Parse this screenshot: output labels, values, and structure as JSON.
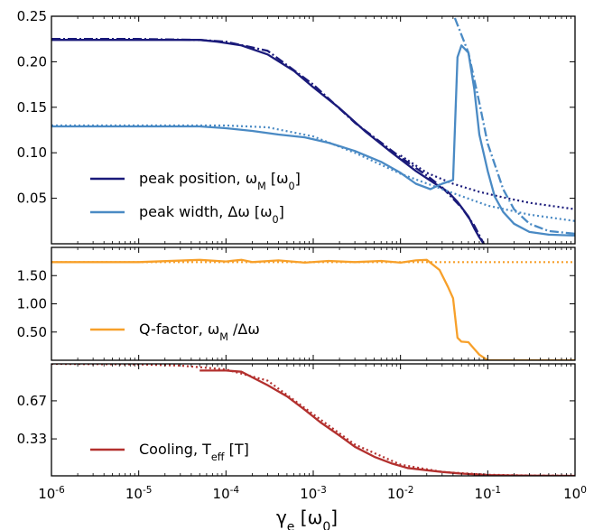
{
  "colors": {
    "dark_blue": "#1a1a7a",
    "light_blue": "#4a8ac4",
    "orange": "#f7a02a",
    "red": "#b3302e"
  },
  "x_axis": {
    "label": "γe [ω0]",
    "label_parts": [
      "γ",
      "e",
      "[ω",
      "0",
      "]"
    ],
    "ticks": [
      {
        "base": "10",
        "exp": "-6"
      },
      {
        "base": "10",
        "exp": "-5"
      },
      {
        "base": "10",
        "exp": "-4"
      },
      {
        "base": "10",
        "exp": "-3"
      },
      {
        "base": "10",
        "exp": "-2"
      },
      {
        "base": "10",
        "exp": "-1"
      },
      {
        "base": "10",
        "exp": "0"
      }
    ]
  },
  "chart_data": [
    {
      "type": "line",
      "x_scale": "log",
      "xlim": [
        1e-06,
        1
      ],
      "ylim": [
        0,
        0.25
      ],
      "yticks": [
        "0.25",
        "0.20",
        "0.15",
        "0.10",
        "0.05"
      ],
      "grid": false,
      "legend": {
        "placement": "lower-left",
        "entries": [
          {
            "text": "peak position, ωM [ω0]",
            "parts": [
              "peak position, ω",
              "M",
              " [ω",
              "0",
              "]"
            ],
            "color": "dark_blue"
          },
          {
            "text": "peak width, Δω [ω0]",
            "parts": [
              "peak width, Δω [ω",
              "0",
              "]"
            ],
            "color": "light_blue"
          }
        ]
      },
      "series": [
        {
          "name": "peak position, ωM [ω0]",
          "style": "solid",
          "color": "dark_blue",
          "points": [
            [
              1e-06,
              0.224
            ],
            [
              1e-05,
              0.224
            ],
            [
              3e-05,
              0.224
            ],
            [
              5e-05,
              0.224
            ],
            [
              8e-05,
              0.222
            ],
            [
              0.00015,
              0.218
            ],
            [
              0.0003,
              0.208
            ],
            [
              0.0006,
              0.19
            ],
            [
              0.001,
              0.172
            ],
            [
              0.002,
              0.149
            ],
            [
              0.004,
              0.123
            ],
            [
              0.008,
              0.1
            ],
            [
              0.015,
              0.08
            ],
            [
              0.025,
              0.066
            ],
            [
              0.035,
              0.057
            ],
            [
              0.045,
              0.046
            ],
            [
              0.06,
              0.03
            ],
            [
              0.07,
              0.017
            ],
            [
              0.08,
              0.007
            ],
            [
              0.09,
              0.0
            ]
          ]
        },
        {
          "name": "peak position, ωM [ω0] (dash-dot fit)",
          "style": "dashdot",
          "color": "dark_blue",
          "points": [
            [
              1e-06,
              0.225
            ],
            [
              1e-05,
              0.225
            ],
            [
              5e-05,
              0.224
            ],
            [
              0.0001,
              0.222
            ],
            [
              0.0003,
              0.212
            ],
            [
              0.001,
              0.175
            ],
            [
              0.003,
              0.133
            ],
            [
              0.01,
              0.095
            ],
            [
              0.02,
              0.075
            ],
            [
              0.03,
              0.062
            ],
            [
              0.05,
              0.04
            ],
            [
              0.07,
              0.02
            ],
            [
              0.09,
              0.0
            ]
          ]
        },
        {
          "name": "peak position, ωM [ω0] (dotted fit)",
          "style": "dotted",
          "color": "dark_blue",
          "points": [
            [
              0.01,
              0.097
            ],
            [
              0.02,
              0.078
            ],
            [
              0.04,
              0.066
            ],
            [
              0.08,
              0.057
            ],
            [
              0.15,
              0.051
            ],
            [
              0.3,
              0.045
            ],
            [
              0.6,
              0.041
            ],
            [
              1.0,
              0.038
            ]
          ]
        },
        {
          "name": "peak width, Δω [ω0]",
          "style": "solid",
          "color": "light_blue",
          "points": [
            [
              1e-06,
              0.129
            ],
            [
              1e-05,
              0.129
            ],
            [
              5e-05,
              0.129
            ],
            [
              0.0001,
              0.127
            ],
            [
              0.0002,
              0.124
            ],
            [
              0.0004,
              0.12
            ],
            [
              0.0008,
              0.117
            ],
            [
              0.0015,
              0.111
            ],
            [
              0.003,
              0.102
            ],
            [
              0.006,
              0.09
            ],
            [
              0.01,
              0.078
            ],
            [
              0.015,
              0.066
            ],
            [
              0.022,
              0.06
            ],
            [
              0.03,
              0.066
            ],
            [
              0.04,
              0.07
            ],
            [
              0.045,
              0.205
            ],
            [
              0.05,
              0.218
            ],
            [
              0.06,
              0.21
            ],
            [
              0.07,
              0.17
            ],
            [
              0.08,
              0.12
            ],
            [
              0.1,
              0.08
            ],
            [
              0.12,
              0.052
            ],
            [
              0.15,
              0.035
            ],
            [
              0.2,
              0.022
            ],
            [
              0.3,
              0.013
            ],
            [
              0.5,
              0.01
            ],
            [
              1.0,
              0.009
            ]
          ]
        },
        {
          "name": "peak width, Δω [ω0] (dash-dot fit)",
          "style": "dashdot",
          "color": "light_blue",
          "points": [
            [
              0.042,
              0.248
            ],
            [
              0.06,
              0.21
            ],
            [
              0.08,
              0.155
            ],
            [
              0.1,
              0.11
            ],
            [
              0.15,
              0.06
            ],
            [
              0.2,
              0.038
            ],
            [
              0.3,
              0.022
            ],
            [
              0.5,
              0.014
            ],
            [
              1.0,
              0.011
            ]
          ]
        },
        {
          "name": "peak width, Δω [ω0] (dotted fit)",
          "style": "dotted",
          "color": "light_blue",
          "points": [
            [
              1e-06,
              0.13
            ],
            [
              1e-05,
              0.13
            ],
            [
              0.0001,
              0.13
            ],
            [
              0.0003,
              0.128
            ],
            [
              0.001,
              0.118
            ],
            [
              0.003,
              0.1
            ],
            [
              0.01,
              0.077
            ],
            [
              0.03,
              0.06
            ],
            [
              0.1,
              0.042
            ],
            [
              0.3,
              0.032
            ],
            [
              1.0,
              0.025
            ]
          ]
        }
      ]
    },
    {
      "type": "line",
      "x_scale": "log",
      "xlim": [
        1e-06,
        1
      ],
      "ylim": [
        0,
        2.0
      ],
      "yticks": [
        "1.50",
        "1.00",
        "0.50"
      ],
      "grid": false,
      "legend": {
        "placement": "lower-left",
        "entries": [
          {
            "text": "Q-factor, ωM /Δω",
            "parts": [
              "Q-factor, ω",
              "M",
              " /Δω"
            ],
            "color": "orange"
          }
        ]
      },
      "series": [
        {
          "name": "Q-factor, ωM /Δω",
          "style": "solid",
          "color": "orange",
          "points": [
            [
              1e-06,
              1.74
            ],
            [
              1e-05,
              1.74
            ],
            [
              5e-05,
              1.78
            ],
            [
              0.0001,
              1.75
            ],
            [
              0.00015,
              1.78
            ],
            [
              0.0002,
              1.74
            ],
            [
              0.0004,
              1.77
            ],
            [
              0.0008,
              1.73
            ],
            [
              0.0015,
              1.76
            ],
            [
              0.003,
              1.74
            ],
            [
              0.006,
              1.76
            ],
            [
              0.01,
              1.73
            ],
            [
              0.015,
              1.77
            ],
            [
              0.02,
              1.78
            ],
            [
              0.028,
              1.6
            ],
            [
              0.035,
              1.3
            ],
            [
              0.04,
              1.1
            ],
            [
              0.045,
              0.4
            ],
            [
              0.05,
              0.33
            ],
            [
              0.06,
              0.32
            ],
            [
              0.07,
              0.2
            ],
            [
              0.08,
              0.1
            ],
            [
              0.1,
              0.0
            ],
            [
              0.3,
              0.0
            ],
            [
              1.0,
              0.0
            ]
          ]
        },
        {
          "name": "Q-factor, ωM /Δω (dotted fit)",
          "style": "dotted",
          "color": "orange",
          "points": [
            [
              1e-06,
              1.74
            ],
            [
              1.0,
              1.74
            ]
          ]
        }
      ]
    },
    {
      "type": "line",
      "x_scale": "log",
      "xlim": [
        1e-06,
        1
      ],
      "ylim": [
        0,
        1.0
      ],
      "yticks": [
        "0.67",
        "0.33"
      ],
      "grid": false,
      "legend": {
        "placement": "lower-left",
        "entries": [
          {
            "text": "Cooling, Teff [T]",
            "parts": [
              "Cooling, T",
              "eff",
              " [T]"
            ],
            "color": "red"
          }
        ]
      },
      "series": [
        {
          "name": "Cooling, Teff [T]",
          "style": "solid",
          "color": "red",
          "points": [
            [
              5e-05,
              0.94
            ],
            [
              0.0001,
              0.94
            ],
            [
              0.00015,
              0.93
            ],
            [
              0.0002,
              0.88
            ],
            [
              0.0003,
              0.81
            ],
            [
              0.0005,
              0.71
            ],
            [
              0.0008,
              0.59
            ],
            [
              0.0012,
              0.48
            ],
            [
              0.002,
              0.36
            ],
            [
              0.003,
              0.26
            ],
            [
              0.005,
              0.17
            ],
            [
              0.008,
              0.11
            ],
            [
              0.012,
              0.07
            ],
            [
              0.02,
              0.05
            ],
            [
              0.03,
              0.035
            ],
            [
              0.05,
              0.02
            ],
            [
              0.1,
              0.007
            ],
            [
              0.2,
              0.003
            ],
            [
              0.5,
              0.001
            ],
            [
              1.0,
              0.0
            ]
          ]
        },
        {
          "name": "Cooling, Teff [T] (dotted fit)",
          "style": "dotted",
          "color": "red",
          "points": [
            [
              1e-06,
              1.0
            ],
            [
              1e-05,
              0.995
            ],
            [
              3e-05,
              0.985
            ],
            [
              0.0001,
              0.95
            ],
            [
              0.0003,
              0.85
            ],
            [
              0.001,
              0.55
            ],
            [
              0.003,
              0.28
            ],
            [
              0.01,
              0.1
            ],
            [
              0.03,
              0.035
            ],
            [
              0.1,
              0.01
            ],
            [
              0.3,
              0.003
            ],
            [
              1.0,
              0.001
            ]
          ]
        }
      ]
    }
  ]
}
